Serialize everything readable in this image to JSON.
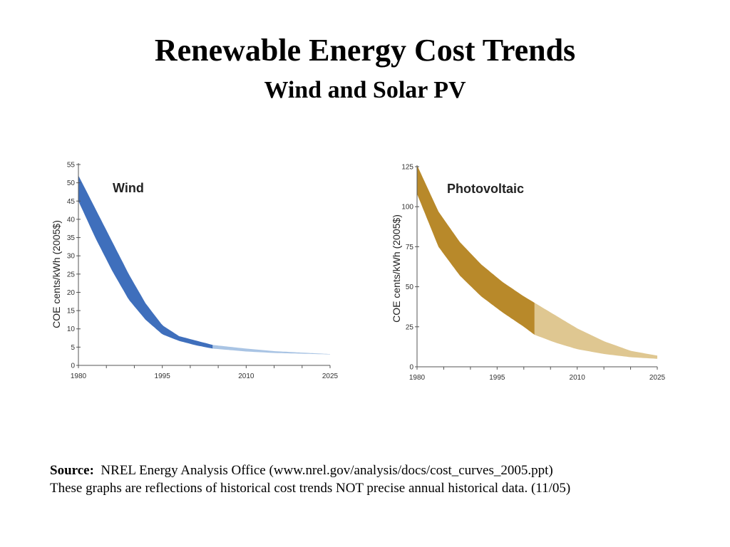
{
  "title": "Renewable Energy Cost Trends",
  "subtitle": "Wind and Solar PV",
  "chart_data": [
    {
      "type": "area",
      "title": "Wind",
      "ylabel": "COE cents/kWh (2005$)",
      "xlabel": "",
      "x_ticks": [
        "1980",
        "1995",
        "2010",
        "2025"
      ],
      "xlim": [
        1980,
        2025
      ],
      "y_ticks": [
        "0",
        "5",
        "10",
        "15",
        "20",
        "25",
        "30",
        "35",
        "40",
        "45",
        "50",
        "55"
      ],
      "ylim": [
        0,
        55
      ],
      "historical_end": 2004,
      "colors": {
        "historical": "#3f6fbc",
        "projected": "#a9c4e4"
      },
      "series": [
        {
          "name": "upper",
          "x": [
            1980,
            1983,
            1986,
            1989,
            1992,
            1995,
            1998,
            2001,
            2004,
            2010,
            2015,
            2020,
            2025
          ],
          "values": [
            52,
            43,
            34,
            25,
            17,
            11,
            8,
            6.8,
            5.6,
            4.6,
            3.9,
            3.5,
            3.1
          ]
        },
        {
          "name": "lower",
          "x": [
            1980,
            1983,
            1986,
            1989,
            1992,
            1995,
            1998,
            2001,
            2004,
            2010,
            2015,
            2020,
            2025
          ],
          "values": [
            45,
            35,
            26,
            18,
            12.5,
            8.5,
            6.7,
            5.5,
            4.6,
            3.8,
            3.4,
            3.2,
            3.0
          ]
        }
      ]
    },
    {
      "type": "area",
      "title": "Photovoltaic",
      "ylabel": "COE cents/kWh (2005$)",
      "xlabel": "",
      "x_ticks": [
        "1980",
        "1995",
        "2010",
        "2025"
      ],
      "xlim": [
        1980,
        2025
      ],
      "y_ticks": [
        "0",
        "25",
        "50",
        "75",
        "100",
        "125"
      ],
      "ylim": [
        0,
        125
      ],
      "historical_end": 2002,
      "colors": {
        "historical": "#b8892a",
        "projected": "#dfc791"
      },
      "series": [
        {
          "name": "upper",
          "x": [
            1980,
            1984,
            1988,
            1992,
            1996,
            2000,
            2002,
            2006,
            2010,
            2015,
            2020,
            2025
          ],
          "values": [
            126,
            97,
            78,
            64,
            53,
            44,
            40,
            32,
            24,
            16,
            10,
            7
          ]
        },
        {
          "name": "lower",
          "x": [
            1980,
            1984,
            1988,
            1992,
            1996,
            2000,
            2002,
            2006,
            2010,
            2015,
            2020,
            2025
          ],
          "values": [
            108,
            75,
            57,
            44,
            34,
            25,
            20,
            15,
            11,
            8,
            6,
            5
          ]
        }
      ]
    }
  ],
  "footer": {
    "source_label": "Source:",
    "source_text": "  NREL Energy Analysis Office (www.nrel.gov/analysis/docs/cost_curves_2005.ppt)",
    "note": "These graphs are reflections of historical cost trends NOT precise annual historical data.  (11/05)"
  }
}
